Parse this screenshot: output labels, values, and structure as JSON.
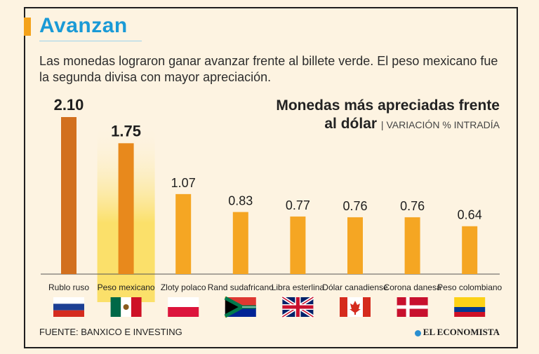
{
  "header": {
    "title": "Avanzan",
    "subtitle": "Las monedas lograron ganar avanzar frente al billete verde. El peso mexicano fue la segunda divisa con mayor apreciación."
  },
  "chart_data": {
    "type": "bar",
    "title_line1": "Monedas más apreciadas frente",
    "title_line2": "al dólar",
    "subtitle": "VARIACIÓN % INTRADÍA",
    "categories": [
      "Rublo ruso",
      "Peso mexicano",
      "Zloty polaco",
      "Rand sudafricano",
      "Libra esterlina",
      "Dólar canadiense",
      "Corona danesa",
      "Peso colombiano"
    ],
    "values": [
      2.1,
      1.75,
      1.07,
      0.83,
      0.77,
      0.76,
      0.76,
      0.64
    ],
    "value_labels": [
      "2.10",
      "1.75",
      "1.07",
      "0.83",
      "0.77",
      "0.76",
      "0.76",
      "0.64"
    ],
    "flags": [
      "russia-flag",
      "mexico-flag",
      "poland-flag",
      "south-africa-flag",
      "uk-flag",
      "canada-flag",
      "denmark-flag",
      "colombia-flag"
    ],
    "highlighted": [
      "Rublo ruso",
      "Peso mexicano"
    ],
    "ylim": [
      0,
      2.1
    ],
    "colors": {
      "bar": "#f5a623",
      "bar_top": "#d2701e",
      "highlight_band": "#fbe06a",
      "axis": "#555555"
    }
  },
  "footer": {
    "source": "FUENTE: BANXICO E INVESTING",
    "brand": "EL ECONOMISTA"
  }
}
